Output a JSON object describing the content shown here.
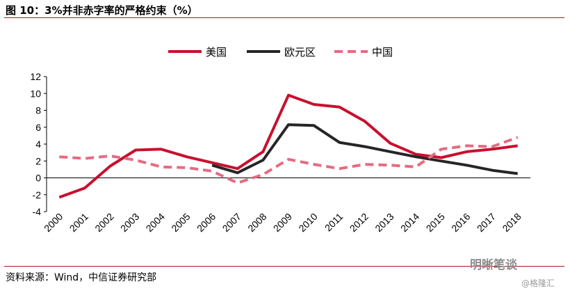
{
  "title": "图 10：3%并非赤字率的严格约束（%）",
  "source": "资料来源：Wind，中信证券研究部",
  "watermark": "明晰笔谈",
  "watermark_sub": "@格隆汇",
  "chart_data": {
    "type": "line",
    "x": [
      "2000",
      "2001",
      "2002",
      "2003",
      "2004",
      "2005",
      "2006",
      "2007",
      "2008",
      "2009",
      "2010",
      "2011",
      "2012",
      "2013",
      "2014",
      "2015",
      "2016",
      "2017",
      "2018"
    ],
    "ylim": [
      -4,
      12
    ],
    "yticks": [
      -4,
      -2,
      0,
      2,
      4,
      6,
      8,
      10,
      12
    ],
    "legend_position": "top-center",
    "grid": false,
    "series": [
      {
        "name": "美国",
        "color": "#c8102e",
        "dash": "solid",
        "values": [
          -2.3,
          -1.2,
          1.4,
          3.3,
          3.4,
          2.5,
          1.8,
          1.1,
          3.1,
          9.8,
          8.7,
          8.4,
          6.7,
          4.1,
          2.8,
          2.4,
          3.1,
          3.4,
          3.8
        ]
      },
      {
        "name": "欧元区",
        "color": "#262626",
        "dash": "solid",
        "values": [
          null,
          null,
          null,
          null,
          null,
          null,
          1.5,
          0.6,
          2.1,
          6.3,
          6.2,
          4.2,
          3.7,
          3.1,
          2.5,
          2.0,
          1.5,
          0.9,
          0.5
        ]
      },
      {
        "name": "中国",
        "color": "#e56b81",
        "dash": "dashed",
        "values": [
          2.5,
          2.3,
          2.6,
          2.1,
          1.3,
          1.2,
          0.8,
          -0.6,
          0.4,
          2.2,
          1.6,
          1.1,
          1.6,
          1.5,
          1.3,
          3.4,
          3.8,
          3.7,
          4.8
        ]
      }
    ]
  }
}
